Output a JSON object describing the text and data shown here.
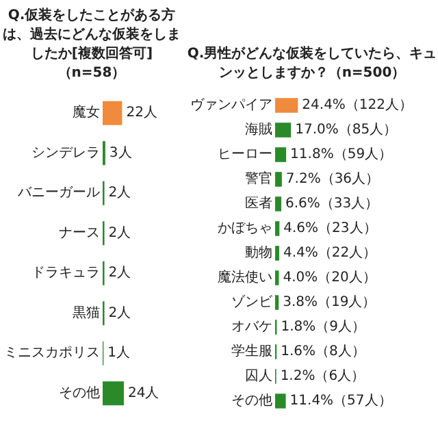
{
  "chart_data": [
    {
      "type": "bar",
      "orientation": "horizontal",
      "title": "Q.仮装をしたことがある方は、過去にどんな仮装をしましたか[複数回答可]（n=58）",
      "categories": [
        "魔女",
        "シンデレラ",
        "バニーガール",
        "ナース",
        "ドラキュラ",
        "黒猫",
        "ミニスカポリス",
        "その他"
      ],
      "values": [
        22,
        3,
        2,
        2,
        2,
        2,
        1,
        24
      ],
      "colors": [
        "#f08a3c",
        "#2a8a2a",
        "#2a8a2a",
        "#2a8a2a",
        "#2a8a2a",
        "#2a8a2a",
        "#2a8a2a",
        "#2a8a2a"
      ],
      "value_labels": [
        "22人",
        "3人",
        "2人",
        "2人",
        "2人",
        "2人",
        "1人",
        "24人"
      ],
      "tick_labels": "y",
      "grid": false,
      "legend": false
    },
    {
      "type": "bar",
      "orientation": "horizontal",
      "title": "Q.男性がどんな仮装をしていたら、キュンッとしますか？（n=500）",
      "categories": [
        "ヴァンパイア",
        "海賊",
        "ヒーロー",
        "警官",
        "医者",
        "かぼちゃ",
        "動物",
        "魔法使い",
        "ゾンビ",
        "オバケ",
        "学生服",
        "囚人",
        "その他"
      ],
      "values": [
        24.4,
        17.0,
        11.8,
        7.2,
        6.6,
        4.6,
        4.4,
        4.0,
        3.8,
        1.8,
        1.6,
        1.2,
        11.4
      ],
      "colors": [
        "#f08a3c",
        "#2a8a2a",
        "#2a8a2a",
        "#2a8a2a",
        "#2a8a2a",
        "#2a8a2a",
        "#2a8a2a",
        "#2a8a2a",
        "#2a8a2a",
        "#2a8a2a",
        "#2a8a2a",
        "#2a8a2a",
        "#2a8a2a"
      ],
      "value_labels": [
        "24.4%（122人）",
        "17.0%（85人）",
        "11.8%（59人）",
        "7.2%（36人）",
        "6.6%（33人）",
        "4.6%（23人）",
        "4.4%（22人）",
        "4.0%（20人）",
        "3.8%（19人）",
        "1.8%（9人）",
        "1.6%（8人）",
        "1.2%（6人）",
        "11.4%（57人）"
      ],
      "tick_labels": "y",
      "grid": false,
      "legend": false
    }
  ]
}
